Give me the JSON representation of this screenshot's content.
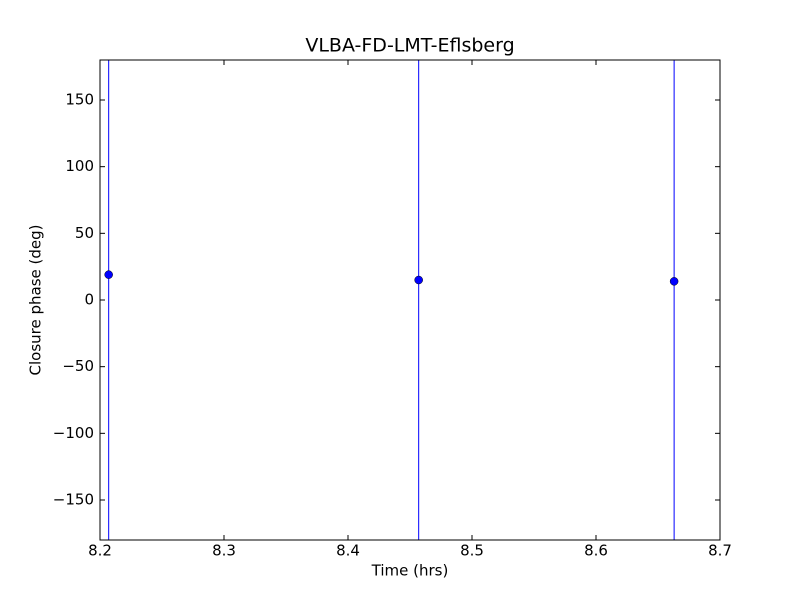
{
  "chart_data": {
    "type": "scatter",
    "title": "VLBA-FD-LMT-Eflsberg",
    "x_label": "Time (hrs)",
    "y_label": "Closure phase (deg)",
    "series": [
      {
        "color": "#0000ff",
        "x": [
          8.207,
          8.457,
          8.663
        ],
        "values": [
          19,
          15,
          14
        ],
        "errors": [
          200,
          200,
          200
        ]
      }
    ],
    "xlim": [
      8.2,
      8.7
    ],
    "xticks": [
      8.2,
      8.3,
      8.4,
      8.5,
      8.6,
      8.7
    ],
    "ylim": [
      -180,
      180
    ],
    "yticks": [
      {
        "value": -150,
        "label": "−150"
      },
      {
        "value": -100,
        "label": "−100"
      },
      {
        "value": -50,
        "label": "−50"
      },
      0,
      50,
      100,
      150
    ],
    "grid": false
  }
}
